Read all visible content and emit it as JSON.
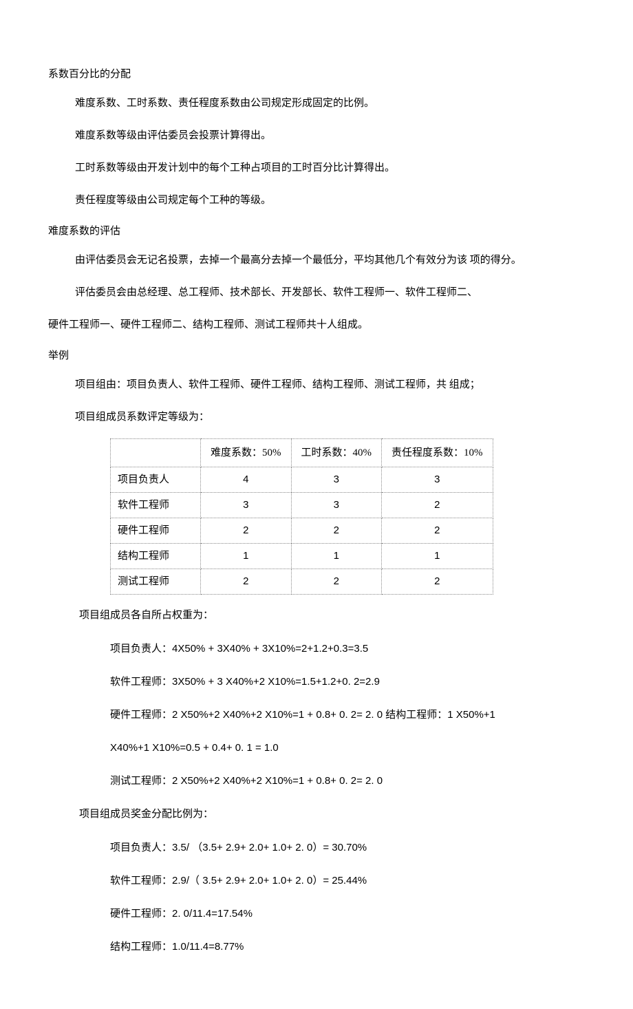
{
  "section1": {
    "title": "系数百分比的分配",
    "p1": "难度系数、工时系数、责任程度系数由公司规定形成固定的比例。",
    "p2": "难度系数等级由评估委员会投票计算得出。",
    "p3": "工时系数等级由开发计划中的每个工种占项目的工时百分比计算得出。",
    "p4": "责任程度等级由公司规定每个工种的等级。"
  },
  "section2": {
    "title": "难度系数的评估",
    "p1": "由评估委员会无记名投票，去掉一个最高分去掉一个最低分，平均其他几个有效分为该 项的得分。",
    "p2": "评估委员会由总经理、总工程师、技术部长、开发部长、软件工程师一、软件工程师二、",
    "p3": "硬件工程师一、硬件工程师二、结构工程师、测试工程师共十人组成。"
  },
  "section3": {
    "title": "举例",
    "p1": "项目组由：项目负责人、软件工程师、硬件工程师、结构工程师、测试工程师，共 组成；",
    "p2": "项目组成员系数评定等级为："
  },
  "table": {
    "headers": [
      "",
      "难度系数：50%",
      "工时系数：40%",
      "责任程度系数：10%"
    ],
    "rows": [
      {
        "label": "项目负责人",
        "c1": "4",
        "c2": "3",
        "c3": "3"
      },
      {
        "label": "软件工程师",
        "c1": "3",
        "c2": "3",
        "c3": "2"
      },
      {
        "label": "硬件工程师",
        "c1": "2",
        "c2": "2",
        "c3": "2"
      },
      {
        "label": "结构工程师",
        "c1": "1",
        "c2": "1",
        "c3": "1"
      },
      {
        "label": "测试工程师",
        "c1": "2",
        "c2": "2",
        "c3": "2"
      }
    ]
  },
  "weights": {
    "title": "项目组成员各自所占权重为：",
    "l1": "项目负责人：4X50% + 3X40% + 3X10%=2+1.2+0.3=3.5",
    "l2": "软件工程师：3X50% + 3 X40%+2 X10%=1.5+1.2+0. 2=2.9",
    "l3": "硬件工程师：2 X50%+2 X40%+2 X10%=1 + 0.8+ 0. 2= 2. 0 结构工程师：1 X50%+1",
    "l4": "X40%+1 X10%=0.5 + 0.4+ 0. 1 = 1.0",
    "l5": "测试工程师：2 X50%+2 X40%+2 X10%=1 + 0.8+ 0. 2= 2. 0"
  },
  "bonus": {
    "title": "项目组成员奖金分配比例为：",
    "l1": "项目负责人：3.5/ （3.5+ 2.9+ 2.0+ 1.0+ 2. 0）= 30.70%",
    "l2": "软件工程师：2.9/（ 3.5+ 2.9+ 2.0+ 1.0+ 2. 0）= 25.44%",
    "l3": "硬件工程师：2. 0/11.4=17.54%",
    "l4": "结构工程师：1.0/11.4=8.77%"
  }
}
